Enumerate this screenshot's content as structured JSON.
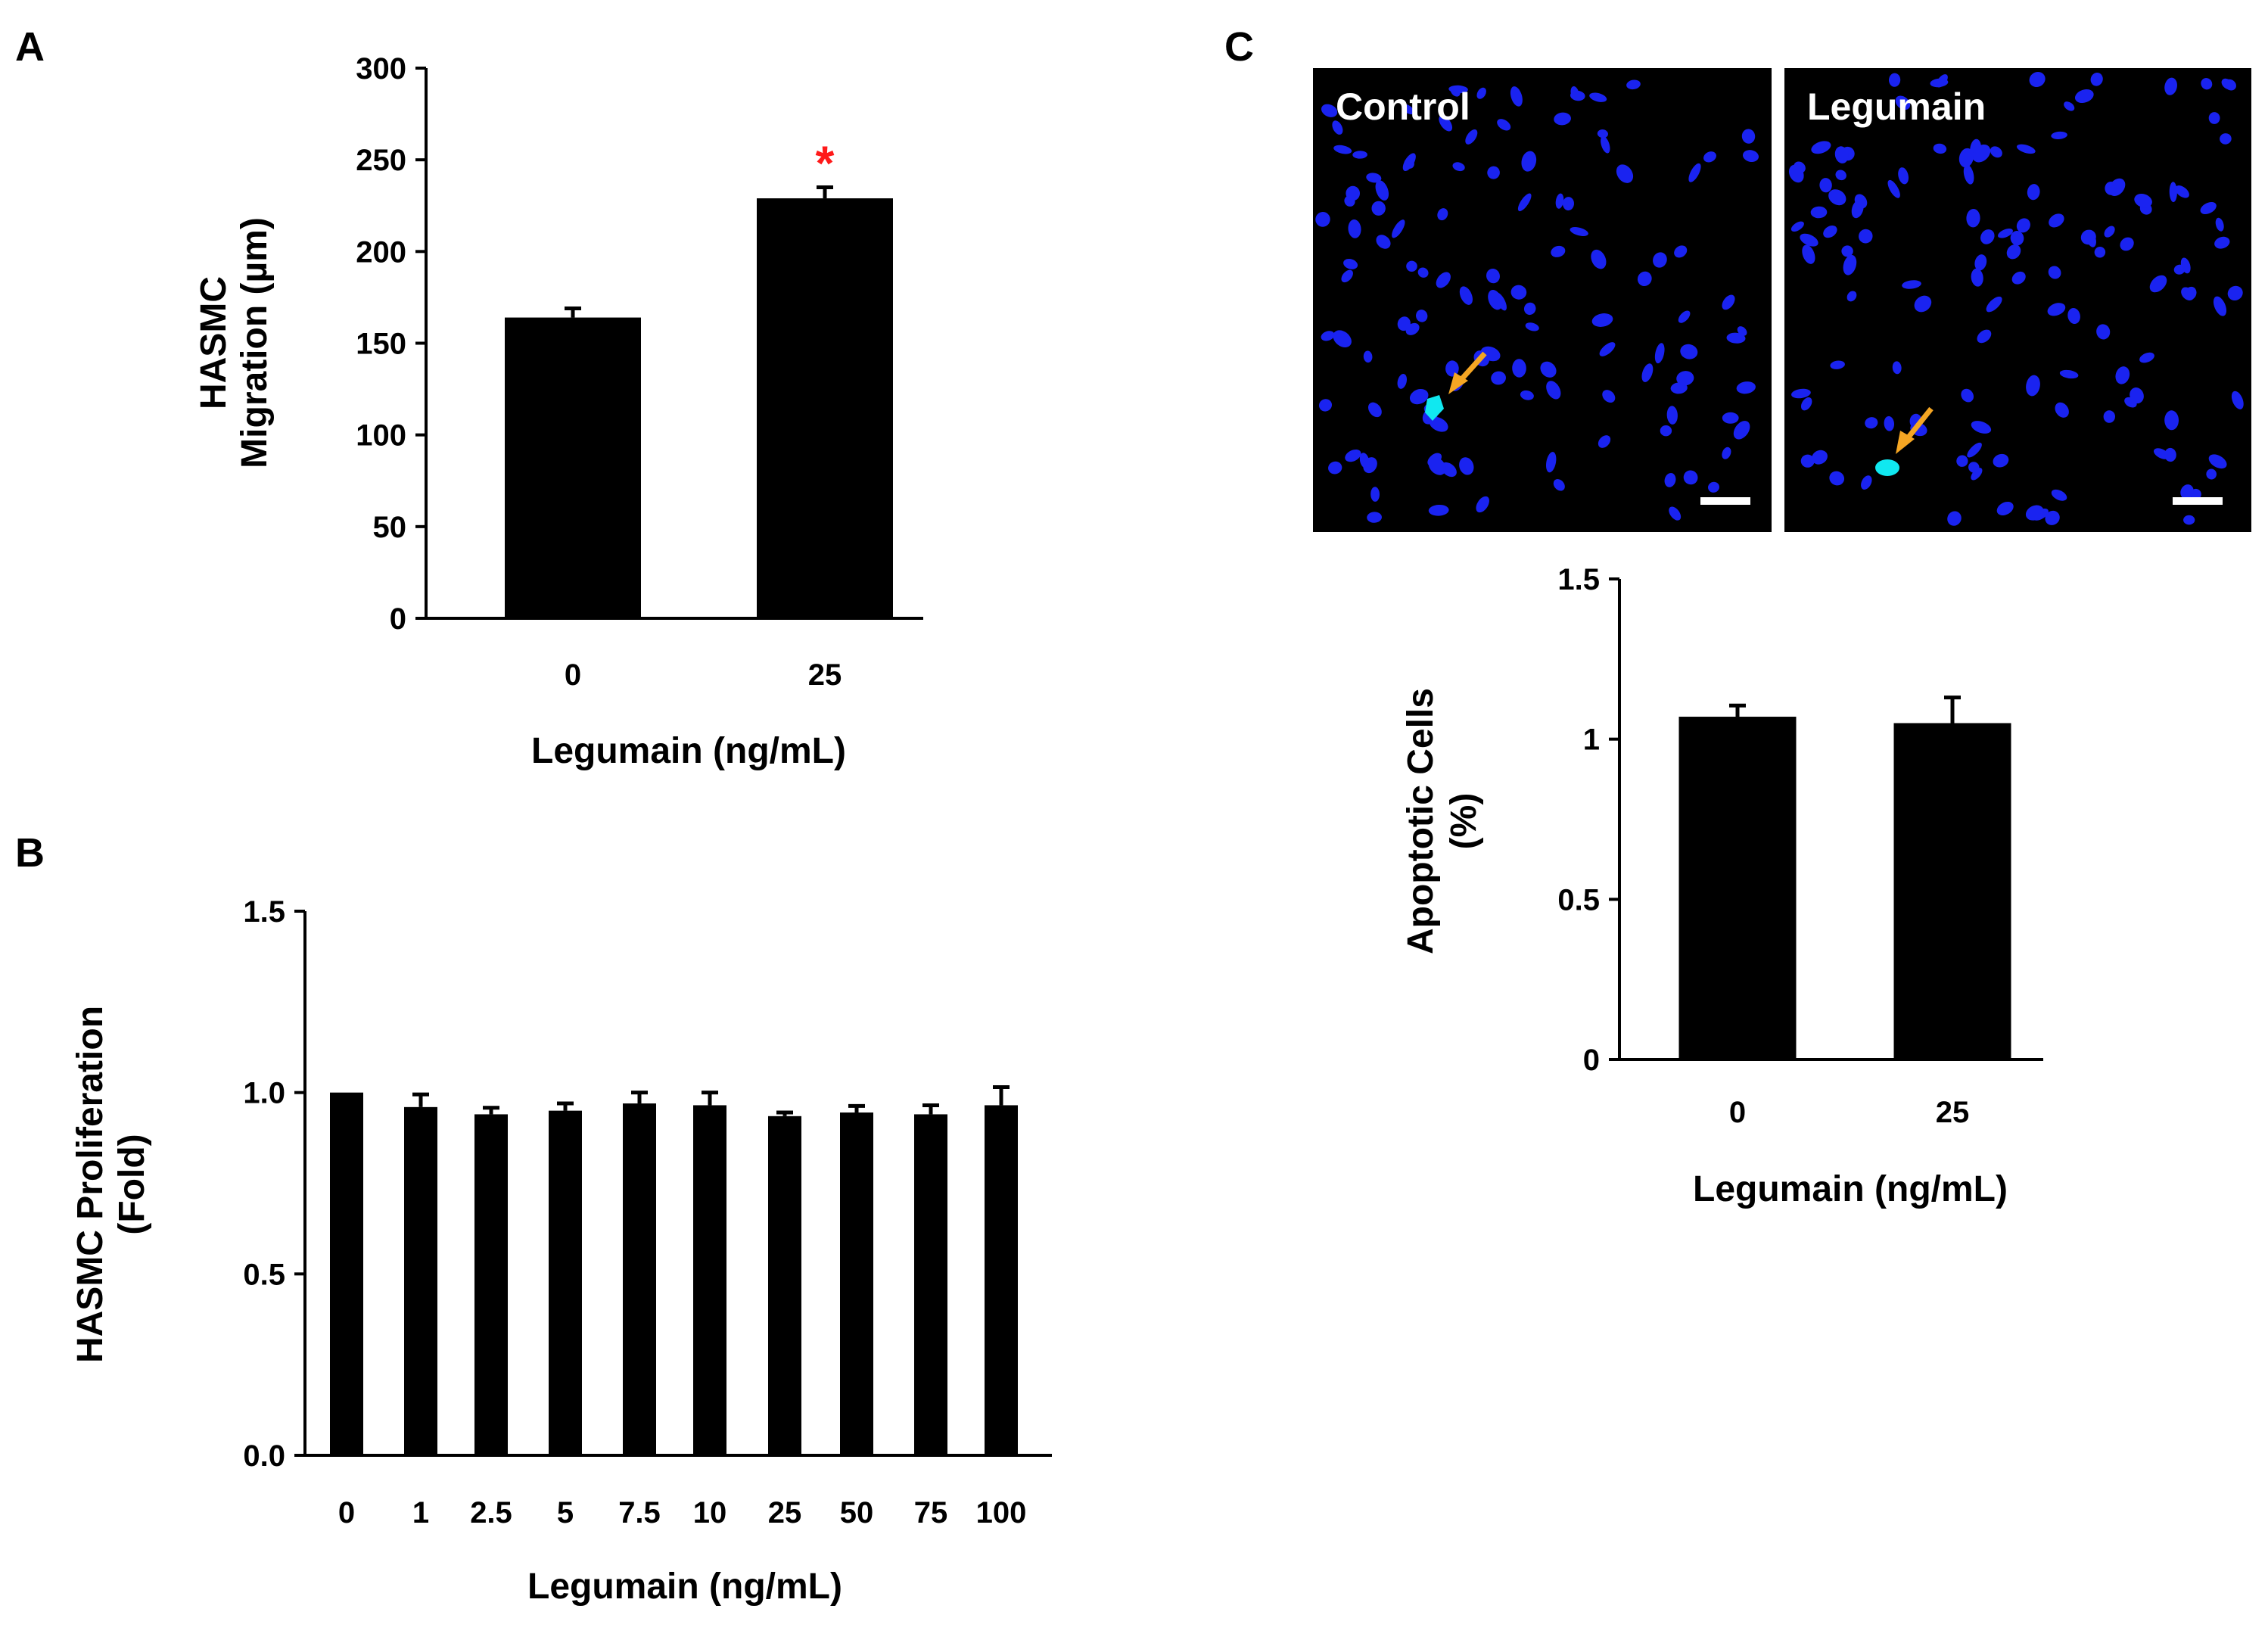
{
  "panels": {
    "a": "A",
    "b": "B",
    "c": "C"
  },
  "micrographs": {
    "left_label": "Control",
    "right_label": "Legumain",
    "nucleus_color": "#1a23f0",
    "apoptotic_color": "#10e8f0",
    "arrow_color": "#f5a623",
    "background_color": "#000000"
  },
  "significance_marker": "*",
  "significance_color": "#ff1a1a",
  "chart_data": [
    {
      "id": "A",
      "type": "bar",
      "title": "",
      "categories": [
        "0",
        "25"
      ],
      "values": [
        164,
        229
      ],
      "errors": [
        5,
        6
      ],
      "significant": [
        false,
        true
      ],
      "xlabel": "Legumain (ng/mL)",
      "ylabel_lines": [
        "HASMC",
        "Migration (µm)"
      ],
      "ylim": [
        0,
        300
      ],
      "yticks": [
        0,
        50,
        100,
        150,
        200,
        250,
        300
      ],
      "ytick_labels": [
        "0",
        "50",
        "100",
        "150",
        "200",
        "250",
        "300"
      ],
      "grid": false
    },
    {
      "id": "B",
      "type": "bar",
      "title": "",
      "categories": [
        "0",
        "1",
        "2.5",
        "5",
        "7.5",
        "10",
        "25",
        "50",
        "75",
        "100"
      ],
      "values": [
        1.0,
        0.96,
        0.94,
        0.95,
        0.97,
        0.965,
        0.935,
        0.945,
        0.94,
        0.965
      ],
      "errors": [
        0.0,
        0.035,
        0.018,
        0.02,
        0.03,
        0.035,
        0.01,
        0.018,
        0.025,
        0.05
      ],
      "xlabel": "Legumain (ng/mL)",
      "ylabel_lines": [
        "HASMC Proliferation",
        "(Fold)"
      ],
      "ylim": [
        0,
        1.5
      ],
      "yticks": [
        0,
        0.5,
        1.0,
        1.5
      ],
      "ytick_labels": [
        "0.0",
        "0.5",
        "1.0",
        "1.5"
      ],
      "grid": false
    },
    {
      "id": "C",
      "type": "bar",
      "title": "",
      "categories": [
        "0",
        "25"
      ],
      "values": [
        1.07,
        1.05
      ],
      "errors": [
        0.035,
        0.08
      ],
      "xlabel": "Legumain (ng/mL)",
      "ylabel_lines": [
        "Apoptotic Cells",
        "(%)"
      ],
      "ylim": [
        0,
        1.5
      ],
      "yticks": [
        0,
        0.5,
        1,
        1.5
      ],
      "ytick_labels": [
        "0",
        "0.5",
        "1",
        "1.5"
      ],
      "grid": false
    }
  ]
}
